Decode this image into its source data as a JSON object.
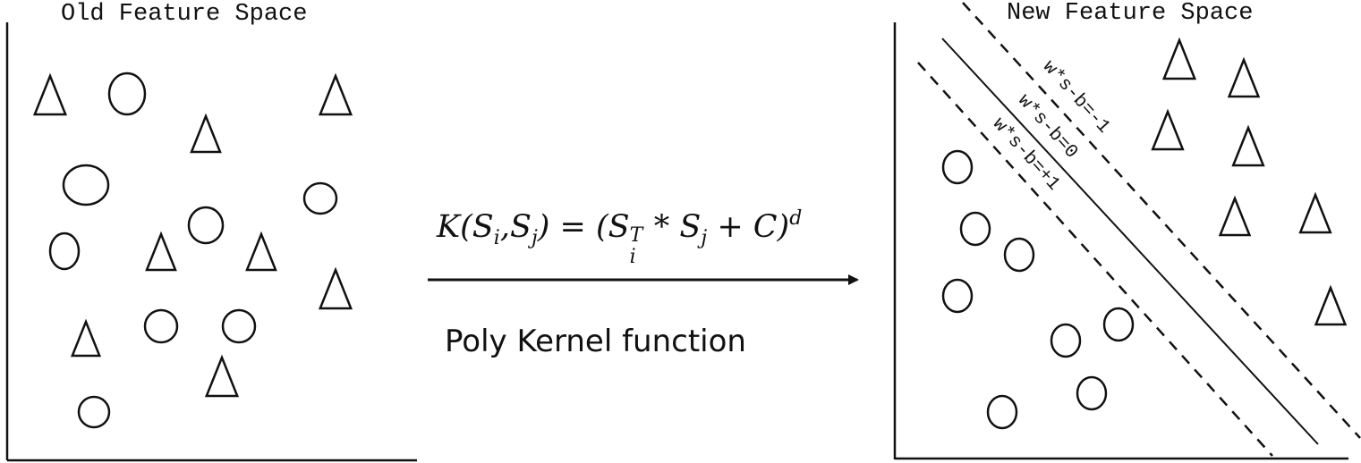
{
  "left_panel": {
    "title": "Old Feature Space"
  },
  "right_panel": {
    "title": "New Feature Space",
    "lines": [
      {
        "label": "w*s-b=-1",
        "style": "dashed"
      },
      {
        "label": "w*s-b=0",
        "style": "solid"
      },
      {
        "label": "w*s-b=+1",
        "style": "dashed"
      }
    ]
  },
  "transform": {
    "formula": {
      "k": "K(S",
      "i1": "i",
      "comma": ",S",
      "j1": "j",
      "mid": ") = (S",
      "i2": "i",
      "T": "T",
      "star": " * S",
      "j2": "j",
      "plus": " + C)",
      "d": "d"
    },
    "caption": "Poly Kernel function"
  },
  "colors": {
    "stroke": "#111111",
    "background": "#ffffff"
  }
}
